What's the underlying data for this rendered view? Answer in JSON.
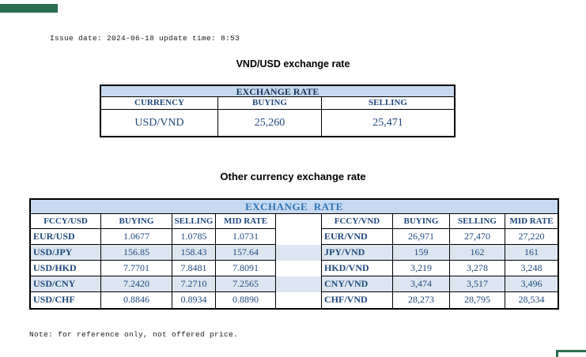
{
  "page": {
    "issue_line": "Issue date: 2024-06-18 update time: 8:53",
    "title_vnd_usd": "VND/USD exchange rate",
    "title_other": "Other currency exchange rate",
    "note": "Note: for reference only, not offered price."
  },
  "colors": {
    "header_band_bg": "#C6D9F0",
    "stripe_bg": "#DCE6F1",
    "upper_band_text": "#17365D",
    "lower_band_text": "#2E74B5",
    "table_text": "#1F497D",
    "accent_green": "#2B6E4F"
  },
  "usd_table": {
    "band_title": "EXCHANGE RATE",
    "headers": [
      "CURRENCY",
      "BUYING",
      "SELLING"
    ],
    "row": {
      "currency": "USD/VND",
      "buying": "25,260",
      "selling": "25,471"
    }
  },
  "other_table": {
    "band_title": "EXCHANGE  RATE",
    "left": {
      "headers": [
        "FCCY/USD",
        "BUYING",
        "SELLING",
        "MID RATE"
      ],
      "rows": [
        {
          "pair": "EUR/USD",
          "buying": "1.0677",
          "selling": "1.0785",
          "mid": "1.0731"
        },
        {
          "pair": "USD/JPY",
          "buying": "156.85",
          "selling": "158.43",
          "mid": "157.64"
        },
        {
          "pair": "USD/HKD",
          "buying": "7.7701",
          "selling": "7.8481",
          "mid": "7.8091"
        },
        {
          "pair": "USD/CNY",
          "buying": "7.2420",
          "selling": "7.2710",
          "mid": "7.2565"
        },
        {
          "pair": "USD/CHF",
          "buying": "0.8846",
          "selling": "0.8934",
          "mid": "0.8890"
        }
      ]
    },
    "right": {
      "headers": [
        "FCCY/VND",
        "BUYING",
        "SELLING",
        "MID RATE"
      ],
      "rows": [
        {
          "pair": "EUR/VND",
          "buying": "26,971",
          "selling": "27,470",
          "mid": "27,220"
        },
        {
          "pair": "JPY/VND",
          "buying": "159",
          "selling": "162",
          "mid": "161"
        },
        {
          "pair": "HKD/VND",
          "buying": "3,219",
          "selling": "3,278",
          "mid": "3,248"
        },
        {
          "pair": "CNY/VND",
          "buying": "3,474",
          "selling": "3,517",
          "mid": "3,496"
        },
        {
          "pair": "CHF/VND",
          "buying": "28,273",
          "selling": "28,795",
          "mid": "28,534"
        }
      ]
    }
  }
}
